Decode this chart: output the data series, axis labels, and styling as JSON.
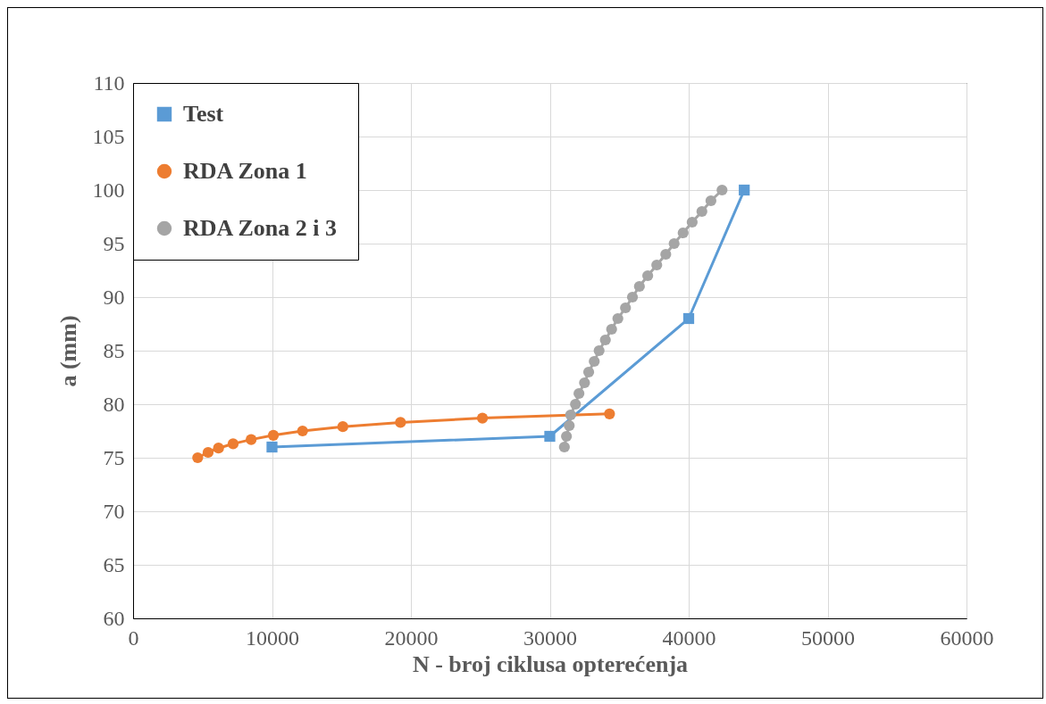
{
  "chart_data": {
    "type": "line",
    "xlabel": "N - broj ciklusa opterećenja",
    "ylabel": "a (mm)",
    "xlim": [
      0,
      60000
    ],
    "xticks": [
      0,
      10000,
      20000,
      30000,
      40000,
      50000,
      60000
    ],
    "ylim": [
      60,
      110
    ],
    "yticks": [
      60,
      65,
      70,
      75,
      80,
      85,
      90,
      95,
      100,
      105,
      110
    ],
    "grid": true,
    "legend": "top left",
    "series": [
      {
        "name": "Test",
        "color": "#5b9bd5",
        "marker": "square",
        "x": [
          10000,
          30000,
          40000,
          44000
        ],
        "values": [
          76,
          77,
          88,
          100
        ]
      },
      {
        "name": "RDA Zona 1",
        "color": "#ed7d31",
        "marker": "circle",
        "x": [
          4650,
          5400,
          6150,
          7200,
          8500,
          10100,
          12200,
          15100,
          19250,
          25150,
          34300
        ],
        "values": [
          75,
          75.5,
          75.9,
          76.3,
          76.7,
          77.1,
          77.5,
          77.9,
          78.3,
          78.7,
          79.1
        ]
      },
      {
        "name": "RDA Zona 2 i 3",
        "color": "#a5a5a5",
        "marker": "circle",
        "x": [
          31050,
          31200,
          31400,
          31500,
          31850,
          32100,
          32500,
          32800,
          33200,
          33550,
          34000,
          34450,
          34900,
          35450,
          35950,
          36450,
          37050,
          37700,
          38350,
          38950,
          39600,
          40250,
          40950,
          41600,
          42400
        ],
        "values": [
          76,
          77,
          78,
          79,
          80,
          81,
          82,
          83,
          84,
          85,
          86,
          87,
          88,
          89,
          90,
          91,
          92,
          93,
          94,
          95,
          96,
          97,
          98,
          99,
          100
        ]
      }
    ]
  }
}
